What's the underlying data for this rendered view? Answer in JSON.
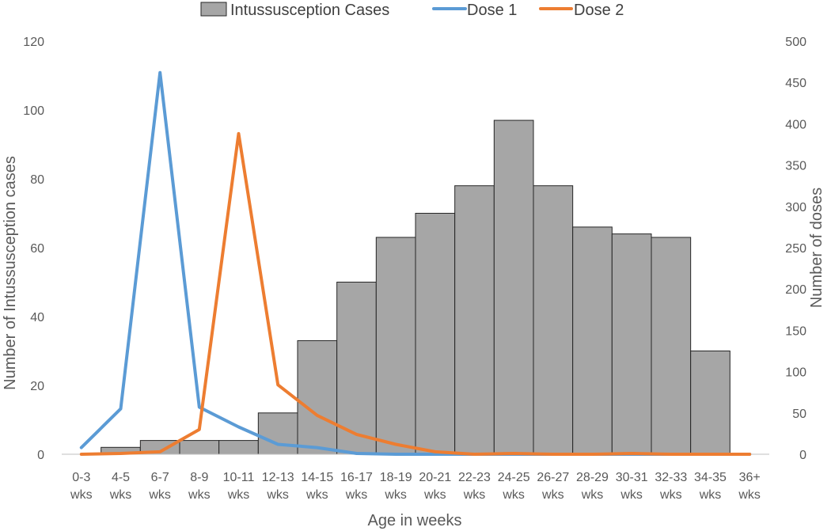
{
  "chart_data": {
    "type": "bar",
    "categories": [
      [
        "0-3",
        "wks"
      ],
      [
        "4-5",
        "wks"
      ],
      [
        "6-7",
        "wks"
      ],
      [
        "8-9",
        "wks"
      ],
      [
        "10-11",
        "wks"
      ],
      [
        "12-13",
        "wks"
      ],
      [
        "14-15",
        "wks"
      ],
      [
        "16-17",
        "wks"
      ],
      [
        "18-19",
        "wks"
      ],
      [
        "20-21",
        "wks"
      ],
      [
        "22-23",
        "wks"
      ],
      [
        "24-25",
        "wks"
      ],
      [
        "26-27",
        "wks"
      ],
      [
        "28-29",
        "wks"
      ],
      [
        "30-31",
        "wks"
      ],
      [
        "32-33",
        "wks"
      ],
      [
        "34-35",
        "wks"
      ],
      [
        "36+",
        "wks"
      ]
    ],
    "series": [
      {
        "name": "Intussusception Cases",
        "type": "bar",
        "axis": "left",
        "color": "#A6A6A6",
        "values": [
          0,
          2,
          4,
          4,
          4,
          12,
          33,
          50,
          63,
          70,
          78,
          97,
          78,
          66,
          64,
          63,
          30,
          0
        ]
      },
      {
        "name": "Dose 1",
        "type": "line",
        "axis": "right",
        "color": "#5B9BD5",
        "values": [
          8,
          55,
          462,
          57,
          33,
          12,
          8,
          1,
          0,
          0,
          0,
          0,
          0,
          0,
          0,
          0,
          0,
          0
        ]
      },
      {
        "name": "Dose 2",
        "type": "line",
        "axis": "right",
        "color": "#ED7D31",
        "values": [
          0,
          1,
          3,
          30,
          388,
          84,
          47,
          24,
          12,
          3,
          0,
          1,
          0,
          0,
          1,
          0,
          0,
          0
        ]
      }
    ],
    "xlabel": "Age in weeks",
    "ylabel": "Number of Intussusception  cases",
    "ylabel_right": "Number of doses",
    "ylim": [
      0,
      120
    ],
    "ylim_right": [
      0,
      500
    ],
    "yticks": [
      0,
      20,
      40,
      60,
      80,
      100,
      120
    ],
    "yticks_right": [
      0,
      50,
      100,
      150,
      200,
      250,
      300,
      350,
      400,
      450,
      500
    ],
    "grid": false,
    "legend_position": "top",
    "bar_edge_color": "#262626"
  }
}
